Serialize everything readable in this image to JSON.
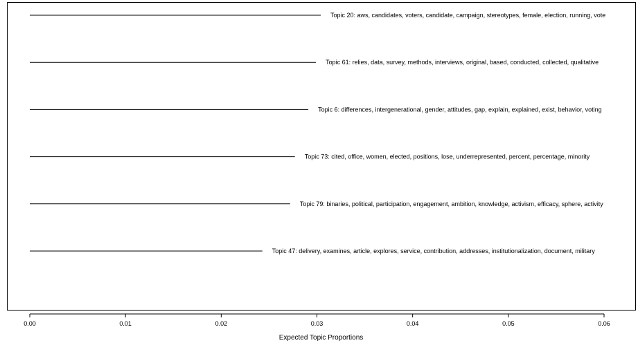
{
  "chart_data": {
    "type": "bar",
    "orientation": "horizontal",
    "xlabel": "Expected Topic Proportions",
    "ylabel": "",
    "title": "",
    "xlim": [
      0.0,
      0.06
    ],
    "xticks": [
      0.0,
      0.01,
      0.02,
      0.03,
      0.04,
      0.05,
      0.06
    ],
    "xtick_labels": [
      "0.00",
      "0.01",
      "0.02",
      "0.03",
      "0.04",
      "0.05",
      "0.06"
    ],
    "grid": false,
    "categories": [
      "Topic 20: aws, candidates, voters, candidate, campaign, stereotypes, female, election, running, vote",
      "Topic 61: relies, data, survey, methods, interviews, original, based, conducted, collected, qualitative",
      "Topic 6: differences, intergenerational, gender, attitudes, gap, explain, explained, exist, behavior, voting",
      "Topic 73: cited, office, women, elected, positions, lose, underrepresented, percent, percentage, minority",
      "Topic 79: binaries, political, participation, engagement, ambition, knowledge, activism, efficacy, sphere, activity",
      "Topic 47: delivery, examines, article, explores, service, contribution, addresses, institutionalization, document, military"
    ],
    "values": [
      0.0304,
      0.0299,
      0.0291,
      0.0277,
      0.0272,
      0.0243
    ]
  }
}
